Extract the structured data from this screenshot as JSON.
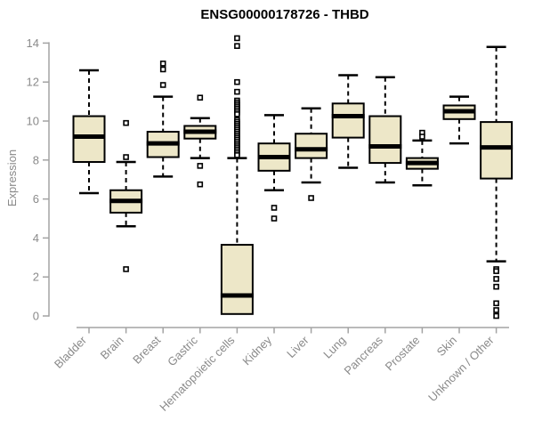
{
  "chart_data": {
    "type": "boxplot",
    "title": "ENSG00000178726 - THBD",
    "ylabel": "Expression",
    "xlabel": "",
    "ylim": [
      0,
      14
    ],
    "yticks": [
      0,
      2,
      4,
      6,
      8,
      10,
      12,
      14
    ],
    "grid": false,
    "legend": "none",
    "colors": {
      "box_fill": "#EDE7C8",
      "box_border": "#000000",
      "median_line": "#000000",
      "whisker": "#000000",
      "outlier_stroke": "#000000",
      "outlier_fill": "#ffffff",
      "axis_line": "#a3a3a3",
      "tick_label": "#8a8a8a",
      "title_color": "#000000",
      "background": "#ffffff"
    },
    "categories": [
      "Bladder",
      "Brain",
      "Breast",
      "Gastric",
      "Hematopoietic cells",
      "Kidney",
      "Liver",
      "Lung",
      "Pancreas",
      "Prostate",
      "Skin",
      "Unknown / Other"
    ],
    "series": [
      {
        "name": "Bladder",
        "whisker_low": 6.3,
        "q1": 7.9,
        "median": 9.2,
        "q3": 10.25,
        "whisker_high": 12.6,
        "outliers": []
      },
      {
        "name": "Brain",
        "whisker_low": 4.6,
        "q1": 5.3,
        "median": 5.9,
        "q3": 6.45,
        "whisker_high": 7.9,
        "outliers": [
          9.9,
          8.15,
          2.4
        ]
      },
      {
        "name": "Breast",
        "whisker_low": 7.15,
        "q1": 8.15,
        "median": 8.85,
        "q3": 9.45,
        "whisker_high": 11.25,
        "outliers": [
          12.95,
          12.65,
          11.85
        ]
      },
      {
        "name": "Gastric",
        "whisker_low": 8.1,
        "q1": 9.1,
        "median": 9.45,
        "q3": 9.75,
        "whisker_high": 10.15,
        "outliers": [
          11.2,
          7.7,
          6.75
        ]
      },
      {
        "name": "Hematopoietic cells",
        "whisker_low": 0.1,
        "q1": 0.1,
        "median": 1.05,
        "q3": 3.65,
        "whisker_high": 8.1,
        "outliers": [
          14.25,
          13.85,
          12.0,
          11.5,
          11.05,
          10.95,
          10.85,
          10.75,
          10.65,
          10.55,
          10.45,
          10.35,
          10.05,
          9.95,
          9.85,
          9.75,
          9.65,
          9.55,
          9.45,
          9.35,
          9.25,
          9.15,
          9.05,
          8.95,
          8.85,
          8.75,
          8.65,
          8.55,
          8.45,
          8.35,
          8.25
        ]
      },
      {
        "name": "Kidney",
        "whisker_low": 6.45,
        "q1": 7.45,
        "median": 8.15,
        "q3": 8.85,
        "whisker_high": 10.3,
        "outliers": [
          5.55,
          5.0
        ]
      },
      {
        "name": "Liver",
        "whisker_low": 6.85,
        "q1": 8.1,
        "median": 8.55,
        "q3": 9.35,
        "whisker_high": 10.65,
        "outliers": [
          6.05
        ]
      },
      {
        "name": "Lung",
        "whisker_low": 7.6,
        "q1": 9.15,
        "median": 10.25,
        "q3": 10.9,
        "whisker_high": 12.35,
        "outliers": []
      },
      {
        "name": "Pancreas",
        "whisker_low": 6.85,
        "q1": 7.85,
        "median": 8.7,
        "q3": 10.25,
        "whisker_high": 12.25,
        "outliers": []
      },
      {
        "name": "Prostate",
        "whisker_low": 6.7,
        "q1": 7.55,
        "median": 7.85,
        "q3": 8.1,
        "whisker_high": 9.0,
        "outliers": [
          9.4,
          9.2
        ]
      },
      {
        "name": "Skin",
        "whisker_low": 8.85,
        "q1": 10.1,
        "median": 10.5,
        "q3": 10.8,
        "whisker_high": 11.25,
        "outliers": []
      },
      {
        "name": "Unknown / Other",
        "whisker_low": 2.8,
        "q1": 7.05,
        "median": 8.65,
        "q3": 9.95,
        "whisker_high": 13.8,
        "outliers": [
          2.4,
          2.3,
          1.9,
          1.5,
          0.65,
          0.3,
          0.0
        ]
      }
    ]
  }
}
